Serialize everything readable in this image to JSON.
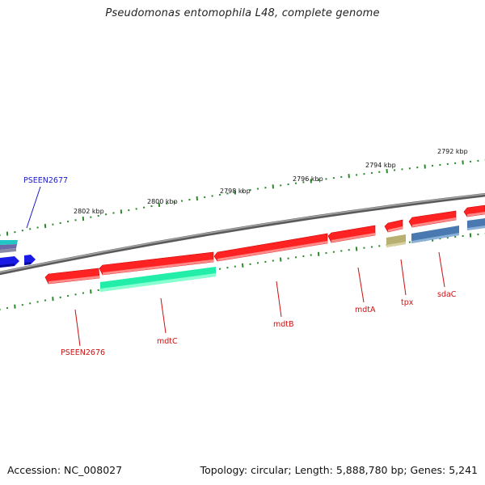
{
  "title": "Pseudomonas entomophila L48, complete genome",
  "footer": {
    "accession": "Accession: NC_008027",
    "summary": "Topology: circular; Length: 5,888,780 bp; Genes: 5,241"
  },
  "colors": {
    "backbone": "#7a7a7a",
    "tick": "#2a8a2a",
    "cds": "#ee1111",
    "cds_stroke": "#b00000",
    "rna_teal": "#22ddaa",
    "protein_blue": "#4a78b0",
    "protein_olive": "#b8b070",
    "gene_blue": "#1a1ae6",
    "label_red": "#cc1111",
    "label_blue": "#1a1acc"
  },
  "ticks": [
    {
      "label": "2802 kbp"
    },
    {
      "label": "2800 kbp"
    },
    {
      "label": "2798 kbp"
    },
    {
      "label": "2796 kbp"
    },
    {
      "label": "2794 kbp"
    },
    {
      "label": "2792 kbp"
    }
  ],
  "genes": [
    {
      "label": "PSEEN2677",
      "color": "label_blue"
    },
    {
      "label": "PSEEN2676",
      "color": "label_red"
    },
    {
      "label": "mdtC",
      "color": "label_red"
    },
    {
      "label": "mdtB",
      "color": "label_red"
    },
    {
      "label": "mdtA",
      "color": "label_red"
    },
    {
      "label": "tpx",
      "color": "label_red"
    },
    {
      "label": "sdaC",
      "color": "label_red"
    }
  ]
}
